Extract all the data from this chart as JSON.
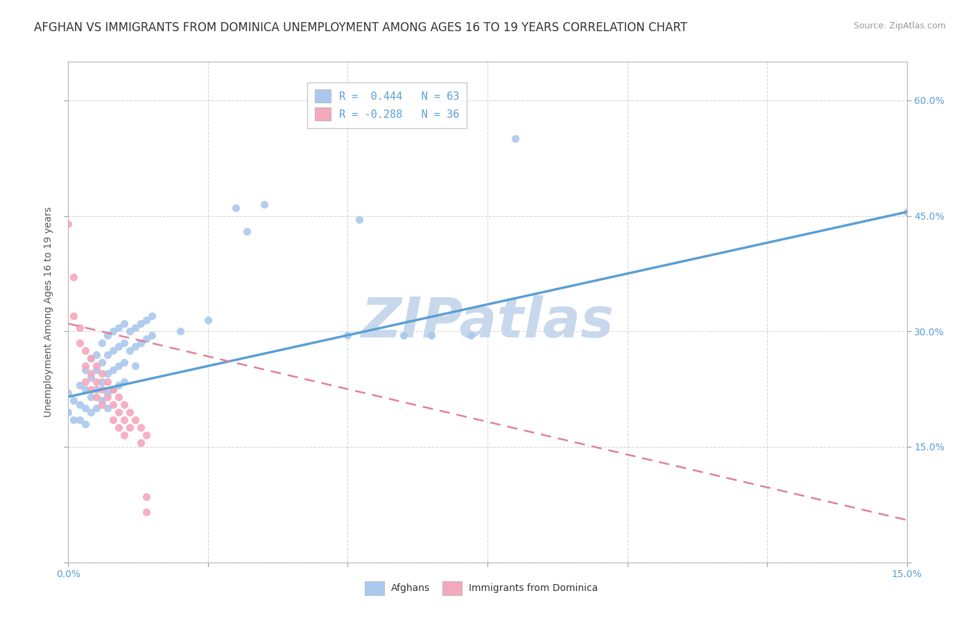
{
  "title": "AFGHAN VS IMMIGRANTS FROM DOMINICA UNEMPLOYMENT AMONG AGES 16 TO 19 YEARS CORRELATION CHART",
  "source": "Source: ZipAtlas.com",
  "xmin": 0.0,
  "xmax": 0.15,
  "ymin": 0.0,
  "ymax": 0.65,
  "yticks": [
    0.0,
    0.15,
    0.3,
    0.45,
    0.6
  ],
  "ytick_labels": [
    "",
    "15.0%",
    "30.0%",
    "45.0%",
    "60.0%"
  ],
  "xticks": [
    0.0,
    0.025,
    0.05,
    0.075,
    0.1,
    0.125,
    0.15
  ],
  "blue_color": "#aac8ed",
  "pink_color": "#f4a8bc",
  "trend_blue": "#5a9fd4",
  "trend_pink": "#e08098",
  "legend_R_blue": "0.444",
  "legend_N_blue": "63",
  "legend_R_pink": "-0.288",
  "legend_N_pink": "36",
  "watermark": "ZIPatlas",
  "watermark_color": "#c8d8ec",
  "blue_points": [
    [
      0.0,
      0.22
    ],
    [
      0.0,
      0.195
    ],
    [
      0.001,
      0.21
    ],
    [
      0.001,
      0.185
    ],
    [
      0.002,
      0.23
    ],
    [
      0.002,
      0.205
    ],
    [
      0.002,
      0.185
    ],
    [
      0.003,
      0.25
    ],
    [
      0.003,
      0.225
    ],
    [
      0.003,
      0.2
    ],
    [
      0.003,
      0.18
    ],
    [
      0.004,
      0.265
    ],
    [
      0.004,
      0.24
    ],
    [
      0.004,
      0.215
    ],
    [
      0.004,
      0.195
    ],
    [
      0.005,
      0.27
    ],
    [
      0.005,
      0.25
    ],
    [
      0.005,
      0.225
    ],
    [
      0.005,
      0.2
    ],
    [
      0.006,
      0.285
    ],
    [
      0.006,
      0.26
    ],
    [
      0.006,
      0.235
    ],
    [
      0.006,
      0.21
    ],
    [
      0.007,
      0.295
    ],
    [
      0.007,
      0.27
    ],
    [
      0.007,
      0.245
    ],
    [
      0.007,
      0.22
    ],
    [
      0.007,
      0.2
    ],
    [
      0.008,
      0.3
    ],
    [
      0.008,
      0.275
    ],
    [
      0.008,
      0.25
    ],
    [
      0.008,
      0.225
    ],
    [
      0.009,
      0.305
    ],
    [
      0.009,
      0.28
    ],
    [
      0.009,
      0.255
    ],
    [
      0.009,
      0.23
    ],
    [
      0.01,
      0.31
    ],
    [
      0.01,
      0.285
    ],
    [
      0.01,
      0.26
    ],
    [
      0.01,
      0.235
    ],
    [
      0.011,
      0.3
    ],
    [
      0.011,
      0.275
    ],
    [
      0.012,
      0.305
    ],
    [
      0.012,
      0.28
    ],
    [
      0.012,
      0.255
    ],
    [
      0.013,
      0.31
    ],
    [
      0.013,
      0.285
    ],
    [
      0.014,
      0.315
    ],
    [
      0.014,
      0.29
    ],
    [
      0.015,
      0.32
    ],
    [
      0.015,
      0.295
    ],
    [
      0.02,
      0.3
    ],
    [
      0.025,
      0.315
    ],
    [
      0.03,
      0.46
    ],
    [
      0.032,
      0.43
    ],
    [
      0.035,
      0.465
    ],
    [
      0.05,
      0.295
    ],
    [
      0.052,
      0.445
    ],
    [
      0.06,
      0.295
    ],
    [
      0.065,
      0.295
    ],
    [
      0.072,
      0.295
    ],
    [
      0.08,
      0.55
    ],
    [
      0.15,
      0.455
    ]
  ],
  "pink_points": [
    [
      0.0,
      0.44
    ],
    [
      0.001,
      0.37
    ],
    [
      0.001,
      0.32
    ],
    [
      0.002,
      0.305
    ],
    [
      0.002,
      0.285
    ],
    [
      0.003,
      0.275
    ],
    [
      0.003,
      0.255
    ],
    [
      0.003,
      0.235
    ],
    [
      0.004,
      0.265
    ],
    [
      0.004,
      0.245
    ],
    [
      0.004,
      0.225
    ],
    [
      0.005,
      0.255
    ],
    [
      0.005,
      0.235
    ],
    [
      0.005,
      0.215
    ],
    [
      0.006,
      0.245
    ],
    [
      0.006,
      0.225
    ],
    [
      0.006,
      0.205
    ],
    [
      0.007,
      0.235
    ],
    [
      0.007,
      0.215
    ],
    [
      0.008,
      0.225
    ],
    [
      0.008,
      0.205
    ],
    [
      0.008,
      0.185
    ],
    [
      0.009,
      0.215
    ],
    [
      0.009,
      0.195
    ],
    [
      0.009,
      0.175
    ],
    [
      0.01,
      0.205
    ],
    [
      0.01,
      0.185
    ],
    [
      0.01,
      0.165
    ],
    [
      0.011,
      0.195
    ],
    [
      0.011,
      0.175
    ],
    [
      0.012,
      0.185
    ],
    [
      0.013,
      0.175
    ],
    [
      0.013,
      0.155
    ],
    [
      0.014,
      0.165
    ],
    [
      0.014,
      0.085
    ],
    [
      0.014,
      0.065
    ]
  ],
  "blue_trend_x": [
    0.0,
    0.15
  ],
  "blue_trend_y": [
    0.215,
    0.455
  ],
  "pink_trend_x": [
    0.0,
    0.15
  ],
  "pink_trend_y": [
    0.31,
    0.055
  ],
  "grid_color": "#cccccc",
  "bg_color": "#ffffff",
  "title_fontsize": 12,
  "label_fontsize": 10,
  "tick_fontsize": 10,
  "source_fontsize": 9,
  "legend_fontsize": 11
}
